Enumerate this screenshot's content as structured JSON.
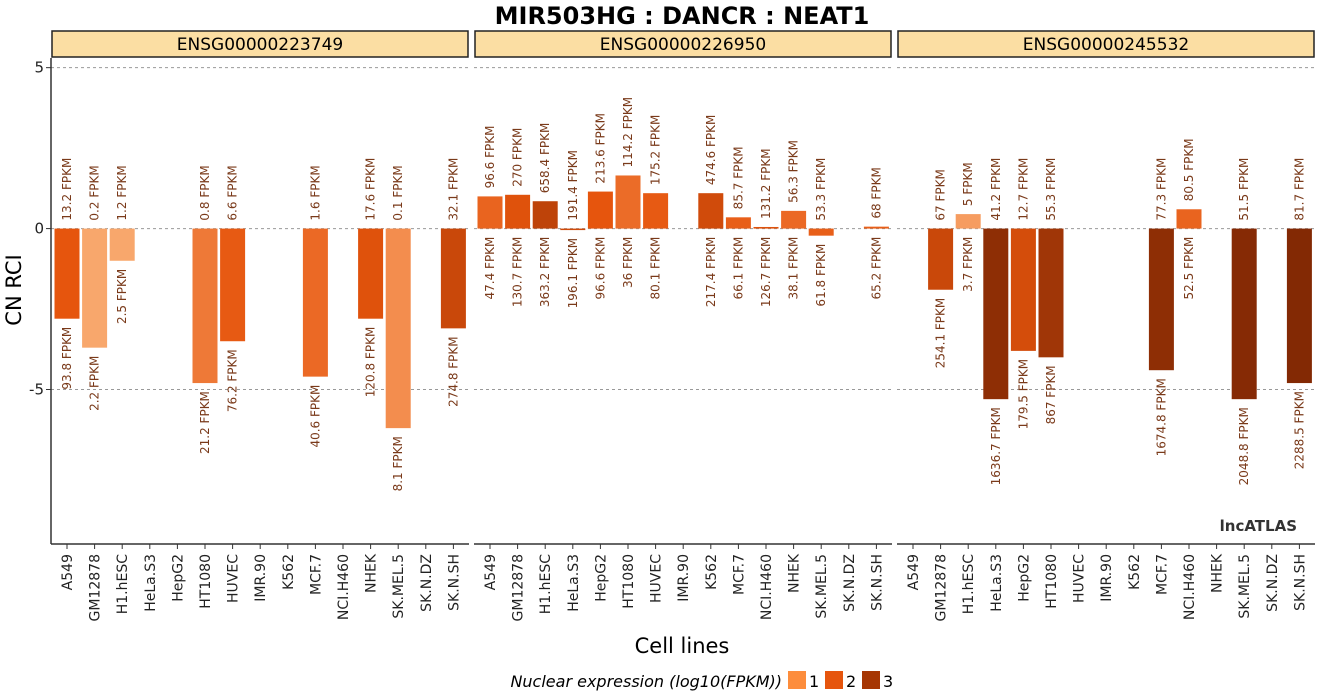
{
  "chart_data": {
    "type": "bar",
    "title": "MIR503HG : DANCR : NEAT1",
    "xlabel": "Cell lines",
    "ylabel": "CN RCI",
    "ylim": [
      -9.8,
      5.3
    ],
    "yticks": [
      -5,
      0,
      5
    ],
    "ytick_labels": [
      "-5",
      "0",
      "5"
    ],
    "grid": "horizontal dashed at ticks",
    "watermark": "lncATLAS",
    "categories": [
      "A549",
      "GM12878",
      "H1.hESC",
      "HeLa.S3",
      "HepG2",
      "HT1080",
      "HUVEC",
      "IMR.90",
      "K562",
      "MCF.7",
      "NCI.H460",
      "NHEK",
      "SK.MEL.5",
      "SK.N.DZ",
      "SK.N.SH"
    ],
    "legend": {
      "title": "Nuclear expression (log10(FPKM))",
      "position": "bottom",
      "levels": [
        {
          "label": "1",
          "color": "#fd8d3c"
        },
        {
          "label": "2",
          "color": "#e6550d"
        },
        {
          "label": "3",
          "color": "#a63603"
        }
      ]
    },
    "color_scale": {
      "low": "#fdbb84",
      "mid": "#e6550d",
      "high": "#7f2704"
    },
    "panels": [
      {
        "strip": "ENSG00000223749",
        "bars": [
          {
            "cell": "A549",
            "rci": -2.8,
            "nuc": "93.8 FPKM",
            "cyt": "13.2 FPKM",
            "level": 2.0
          },
          {
            "cell": "GM12878",
            "rci": -3.7,
            "nuc": "2.2 FPKM",
            "cyt": "0.2 FPKM",
            "level": 0.4
          },
          {
            "cell": "H1.hESC",
            "rci": -1.0,
            "nuc": "2.5 FPKM",
            "cyt": "1.2 FPKM",
            "level": 0.4
          },
          {
            "cell": "HT1080",
            "rci": -4.8,
            "nuc": "21.2 FPKM",
            "cyt": "0.8 FPKM",
            "level": 1.3
          },
          {
            "cell": "HUVEC",
            "rci": -3.5,
            "nuc": "76.2 FPKM",
            "cyt": "6.6 FPKM",
            "level": 1.9
          },
          {
            "cell": "MCF.7",
            "rci": -4.6,
            "nuc": "40.6 FPKM",
            "cyt": "1.6 FPKM",
            "level": 1.6
          },
          {
            "cell": "NHEK",
            "rci": -2.8,
            "nuc": "120.8 FPKM",
            "cyt": "17.6 FPKM",
            "level": 2.1
          },
          {
            "cell": "SK.MEL.5",
            "rci": -6.2,
            "nuc": "8.1 FPKM",
            "cyt": "0.1 FPKM",
            "level": 0.9
          },
          {
            "cell": "SK.N.SH",
            "rci": -3.1,
            "nuc": "274.8 FPKM",
            "cyt": "32.1 FPKM",
            "level": 2.4
          }
        ]
      },
      {
        "strip": "ENSG00000226950",
        "bars": [
          {
            "cell": "A549",
            "rci": 1.0,
            "nuc": "47.4 FPKM",
            "cyt": "96.6 FPKM",
            "level": 1.7
          },
          {
            "cell": "GM12878",
            "rci": 1.05,
            "nuc": "130.7 FPKM",
            "cyt": "270 FPKM",
            "level": 2.1
          },
          {
            "cell": "H1.hESC",
            "rci": 0.85,
            "nuc": "363.2 FPKM",
            "cyt": "658.4 FPKM",
            "level": 2.55
          },
          {
            "cell": "HeLa.S3",
            "rci": -0.04,
            "nuc": "196.1 FPKM",
            "cyt": "191.4 FPKM",
            "level": 2.3
          },
          {
            "cell": "HepG2",
            "rci": 1.15,
            "nuc": "96.6 FPKM",
            "cyt": "213.6 FPKM",
            "level": 2.0
          },
          {
            "cell": "HT1080",
            "rci": 1.65,
            "nuc": "36 FPKM",
            "cyt": "114.2 FPKM",
            "level": 1.55
          },
          {
            "cell": "HUVEC",
            "rci": 1.1,
            "nuc": "80.1 FPKM",
            "cyt": "175.2 FPKM",
            "level": 1.9
          },
          {
            "cell": "K562",
            "rci": 1.1,
            "nuc": "217.4 FPKM",
            "cyt": "474.6 FPKM",
            "level": 2.3
          },
          {
            "cell": "MCF.7",
            "rci": 0.35,
            "nuc": "66.1 FPKM",
            "cyt": "85.7 FPKM",
            "level": 1.8
          },
          {
            "cell": "NCI.H460",
            "rci": 0.05,
            "nuc": "126.7 FPKM",
            "cyt": "131.2 FPKM",
            "level": 2.1
          },
          {
            "cell": "NHEK",
            "rci": 0.55,
            "nuc": "38.1 FPKM",
            "cyt": "56.3 FPKM",
            "level": 1.6
          },
          {
            "cell": "SK.MEL.5",
            "rci": -0.22,
            "nuc": "61.8 FPKM",
            "cyt": "53.3 FPKM",
            "level": 1.8
          },
          {
            "cell": "SK.N.SH",
            "rci": 0.06,
            "nuc": "65.2 FPKM",
            "cyt": "68 FPKM",
            "level": 1.8
          }
        ]
      },
      {
        "strip": "ENSG00000245532",
        "bars": [
          {
            "cell": "GM12878",
            "rci": -1.9,
            "nuc": "254.1 FPKM",
            "cyt": "67 FPKM",
            "level": 2.4
          },
          {
            "cell": "H1.hESC",
            "rci": 0.45,
            "nuc": "3.7 FPKM",
            "cyt": "5 FPKM",
            "level": 0.6
          },
          {
            "cell": "HeLa.S3",
            "rci": -5.3,
            "nuc": "1636.7 FPKM",
            "cyt": "41.2 FPKM",
            "level": 3.2
          },
          {
            "cell": "HepG2",
            "rci": -3.8,
            "nuc": "179.5 FPKM",
            "cyt": "12.7 FPKM",
            "level": 2.25
          },
          {
            "cell": "HT1080",
            "rci": -4.0,
            "nuc": "867 FPKM",
            "cyt": "55.3 FPKM",
            "level": 2.95
          },
          {
            "cell": "MCF.7",
            "rci": -4.4,
            "nuc": "1674.8 FPKM",
            "cyt": "77.3 FPKM",
            "level": 3.2
          },
          {
            "cell": "NCI.H460",
            "rci": 0.6,
            "nuc": "52.5 FPKM",
            "cyt": "80.5 FPKM",
            "level": 1.7
          },
          {
            "cell": "SK.MEL.5",
            "rci": -5.3,
            "nuc": "2048.8 FPKM",
            "cyt": "51.5 FPKM",
            "level": 3.3
          },
          {
            "cell": "SK.N.SH",
            "rci": -4.8,
            "nuc": "2288.5 FPKM",
            "cyt": "81.7 FPKM",
            "level": 3.35
          }
        ]
      }
    ]
  }
}
